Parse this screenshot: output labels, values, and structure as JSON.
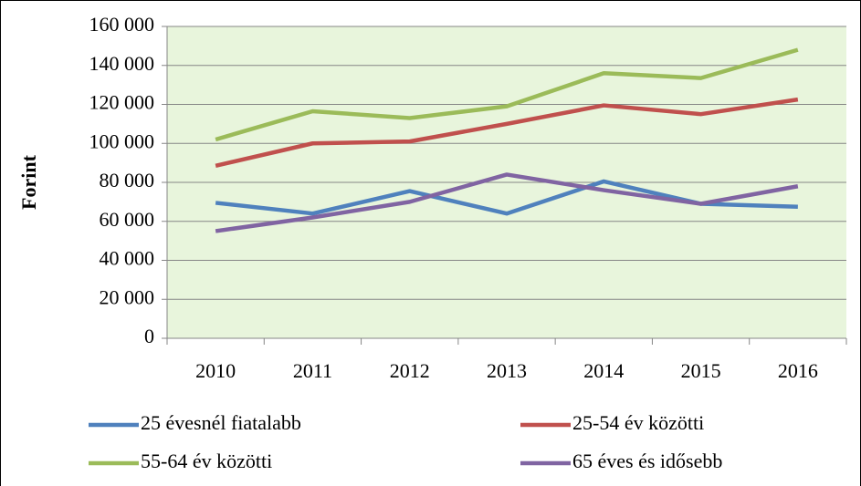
{
  "chart_data": {
    "type": "line",
    "y_label": "Forint",
    "categories": [
      "2010",
      "2011",
      "2012",
      "2013",
      "2014",
      "2015",
      "2016"
    ],
    "series": [
      {
        "name": "25 évesnél fiatalabb",
        "color": "#4f81bd",
        "values": [
          69500,
          64000,
          75500,
          64000,
          80500,
          69000,
          67500
        ]
      },
      {
        "name": "25-54 év közötti",
        "color": "#c0504d",
        "values": [
          88500,
          100000,
          101000,
          110000,
          119500,
          115000,
          122500
        ]
      },
      {
        "name": "55-64 év közötti",
        "color": "#9bbb59",
        "values": [
          102000,
          116500,
          113000,
          119000,
          136000,
          133500,
          148000
        ]
      },
      {
        "name": "65 éves és idősebb",
        "color": "#8064a2",
        "values": [
          55000,
          62000,
          70000,
          84000,
          76000,
          69000,
          78000
        ]
      }
    ],
    "ylim": [
      0,
      160000
    ],
    "yticks": [
      0,
      {
        "value": 20000,
        "label": "20 000"
      },
      {
        "value": 40000,
        "label": "40 000"
      },
      {
        "value": 60000,
        "label": "60 000"
      },
      {
        "value": 80000,
        "label": "80 000"
      },
      {
        "value": 100000,
        "label": "100 000"
      },
      {
        "value": 120000,
        "label": "120 000"
      },
      {
        "value": 140000,
        "label": "140 000"
      },
      {
        "value": 160000,
        "label": "160 000"
      }
    ],
    "grid": true,
    "plot_background": "#e8f5dc",
    "legend": "bottom"
  }
}
